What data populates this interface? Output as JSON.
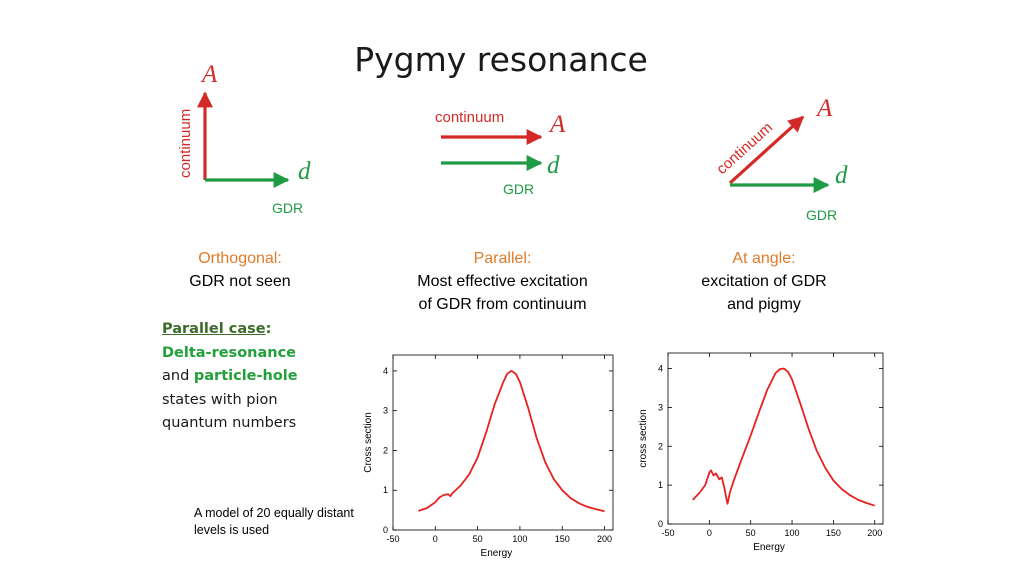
{
  "slide": {
    "title": "Pygmy resonance",
    "colors": {
      "red": "#d42a27",
      "green": "#1f9a45",
      "orange": "#e07b2a",
      "dark_green": "#3d6b2a"
    }
  },
  "diagrams": {
    "orthogonal": {
      "a_label": "A",
      "d_label": "d",
      "red_label": "continuum",
      "green_label": "GDR"
    },
    "parallel": {
      "a_label": "A",
      "d_label": "d",
      "red_label": "continuum",
      "green_label": "GDR"
    },
    "angle": {
      "a_label": "A",
      "d_label": "d",
      "red_label": "continuum",
      "green_label": "GDR"
    }
  },
  "captions": {
    "orthogonal": {
      "head": "Orthogonal:",
      "line1": "GDR not seen"
    },
    "parallel": {
      "head": "Parallel:",
      "line1": "Most effective excitation",
      "line2": "of GDR from continuum"
    },
    "angle": {
      "head": "At angle:",
      "line1": "excitation of GDR",
      "line2": "and pigmy"
    }
  },
  "note": {
    "title": "Parallel case",
    "colon": ":",
    "delta": "Delta-resonance",
    "and": "and",
    "ph": "particle-hole",
    "rest1": "states with pion",
    "rest2": "quantum numbers"
  },
  "model_text": "A model of 20 equally distant levels is used",
  "chart_data": [
    {
      "type": "line",
      "title": "",
      "xlabel": "Energy",
      "ylabel": "Cross section",
      "xlim": [
        -50,
        210
      ],
      "ylim": [
        0,
        4.4
      ],
      "xticks": [
        -50,
        0,
        50,
        100,
        150,
        200
      ],
      "yticks": [
        0,
        1,
        2,
        3,
        4
      ],
      "grid": false,
      "series": [
        {
          "color": "#e8201e",
          "x": [
            -20,
            -10,
            0,
            5,
            10,
            15,
            18,
            20,
            30,
            40,
            50,
            60,
            70,
            80,
            85,
            90,
            95,
            100,
            110,
            120,
            130,
            140,
            150,
            160,
            170,
            180,
            190,
            200
          ],
          "y": [
            0.48,
            0.55,
            0.7,
            0.82,
            0.88,
            0.9,
            0.85,
            0.92,
            1.12,
            1.4,
            1.82,
            2.45,
            3.15,
            3.7,
            3.93,
            4.0,
            3.93,
            3.72,
            3.05,
            2.3,
            1.7,
            1.28,
            1.0,
            0.8,
            0.67,
            0.58,
            0.52,
            0.47
          ]
        }
      ]
    },
    {
      "type": "line",
      "title": "",
      "xlabel": "Energy",
      "ylabel": "cross section",
      "xlim": [
        -50,
        210
      ],
      "ylim": [
        0,
        4.4
      ],
      "xticks": [
        -50,
        0,
        50,
        100,
        150,
        200
      ],
      "yticks": [
        0,
        1,
        2,
        3,
        4
      ],
      "grid": false,
      "series": [
        {
          "color": "#e8201e",
          "x": [
            -20,
            -12,
            -5,
            0,
            2,
            5,
            8,
            12,
            15,
            18,
            20,
            22,
            25,
            30,
            40,
            50,
            60,
            70,
            80,
            85,
            90,
            95,
            100,
            110,
            120,
            130,
            140,
            150,
            160,
            170,
            180,
            190,
            200
          ],
          "y": [
            0.62,
            0.8,
            1.0,
            1.32,
            1.38,
            1.25,
            1.3,
            1.15,
            1.2,
            0.95,
            0.72,
            0.52,
            0.82,
            1.15,
            1.72,
            2.28,
            2.88,
            3.45,
            3.88,
            3.98,
            4.0,
            3.92,
            3.72,
            3.1,
            2.45,
            1.88,
            1.45,
            1.12,
            0.9,
            0.74,
            0.62,
            0.54,
            0.47
          ]
        }
      ]
    }
  ]
}
